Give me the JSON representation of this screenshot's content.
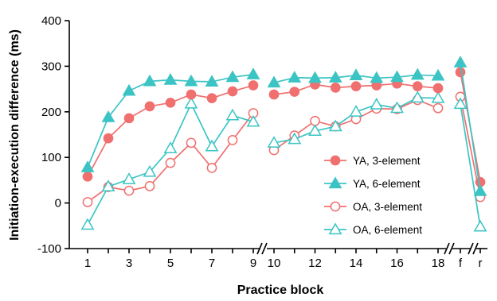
{
  "chart_data": {
    "type": "line",
    "xlabel": "Practice block",
    "ylabel": "Initiation-execution difference (ms)",
    "ylim": [
      -100,
      400
    ],
    "yticks": [
      -100,
      0,
      100,
      200,
      300,
      400
    ],
    "x_segments": [
      {
        "x": [
          1,
          2,
          3,
          4,
          5,
          6,
          7,
          8,
          9
        ],
        "tick_labels": [
          "1",
          "3",
          "5",
          "7",
          "9"
        ]
      },
      {
        "x": [
          10,
          11,
          12,
          13,
          14,
          15,
          16,
          17,
          18
        ],
        "tick_labels": [
          "10",
          "12",
          "14",
          "16",
          "18"
        ]
      },
      {
        "x": [
          "f"
        ],
        "tick_labels": [
          "f"
        ]
      },
      {
        "x": [
          "r"
        ],
        "tick_labels": [
          "r"
        ]
      }
    ],
    "colors": {
      "YA": "#f07070",
      "OA": "#f07070",
      "six": "#3cc4c4"
    },
    "legend_position": "bottom-right",
    "series": [
      {
        "name": "YA, 3-element",
        "color": "#f07070",
        "marker": "circle",
        "filled": true,
        "values": [
          [
            58,
            142,
            186,
            212,
            220,
            238,
            230,
            245,
            258
          ],
          [
            238,
            244,
            260,
            253,
            256,
            258,
            262,
            256,
            252
          ],
          [
            287
          ],
          [
            46
          ]
        ]
      },
      {
        "name": "YA, 6-element",
        "color": "#3cc4c4",
        "marker": "triangle",
        "filled": true,
        "values": [
          [
            78,
            188,
            246,
            267,
            270,
            267,
            266,
            276,
            282
          ],
          [
            264,
            275,
            274,
            275,
            280,
            274,
            276,
            281,
            279
          ],
          [
            308
          ],
          [
            26
          ]
        ]
      },
      {
        "name": "OA, 3-element",
        "color": "#f07070",
        "marker": "circle",
        "filled": false,
        "values": [
          [
            2,
            35,
            27,
            37,
            88,
            132,
            77,
            138,
            197
          ],
          [
            116,
            148,
            180,
            168,
            184,
            207,
            206,
            226,
            208
          ],
          [
            233
          ],
          [
            13
          ]
        ]
      },
      {
        "name": "OA, 6-element",
        "color": "#3cc4c4",
        "marker": "triangle",
        "filled": false,
        "values": [
          [
            -48,
            36,
            52,
            68,
            120,
            218,
            124,
            192,
            178
          ],
          [
            132,
            140,
            158,
            168,
            200,
            216,
            208,
            231,
            230
          ],
          [
            217
          ],
          [
            -52
          ]
        ]
      }
    ]
  }
}
